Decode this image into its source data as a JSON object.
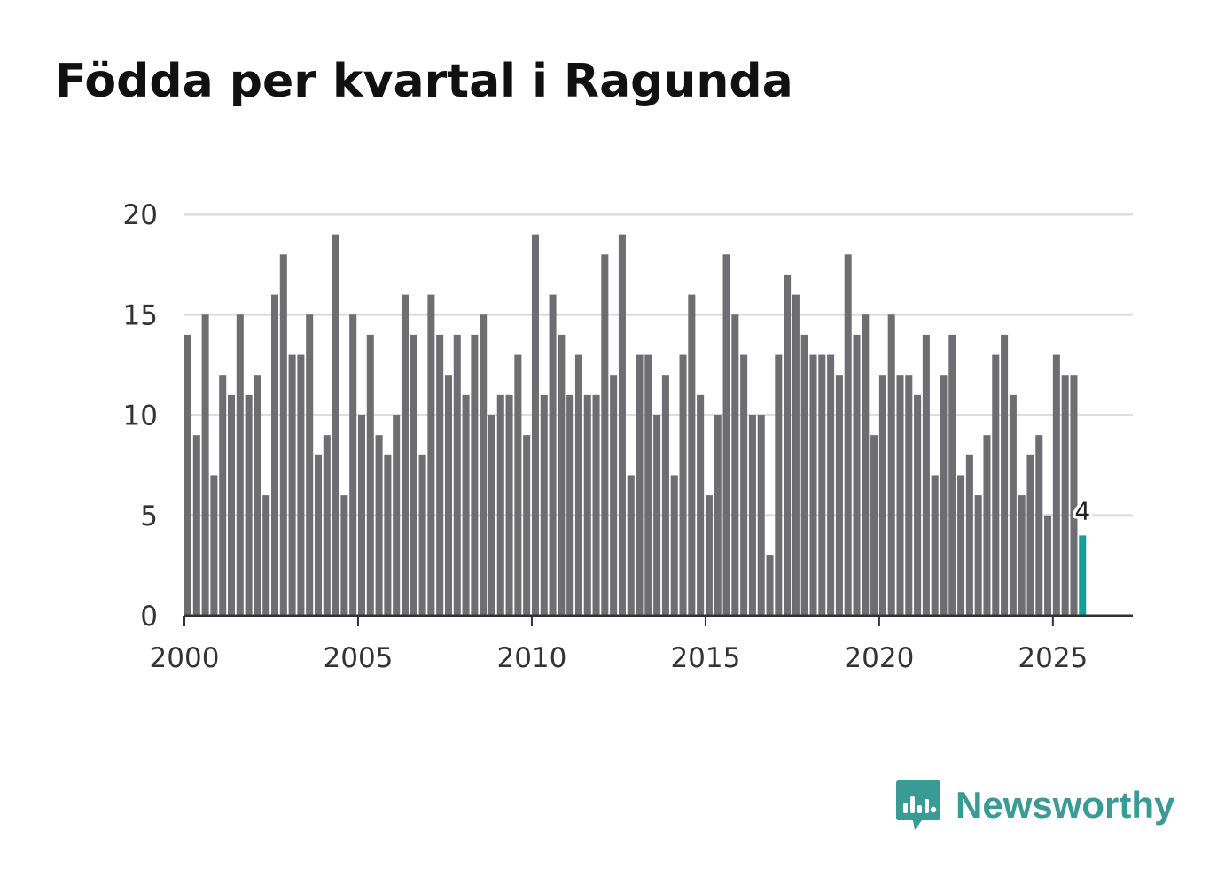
{
  "title": "Födda per kvartal i Ragunda",
  "brand": {
    "name": "Newsworthy",
    "color": "#3a9a94"
  },
  "colors": {
    "bar": "#6e6d72",
    "highlight": "#139e97",
    "grid": "#dddddd",
    "axis": "#333333"
  },
  "chart_data": {
    "type": "bar",
    "title": "Födda per kvartal i Ragunda",
    "xlabel": "",
    "ylabel": "",
    "ylim": [
      0,
      20
    ],
    "yticks": [
      0,
      5,
      10,
      15,
      20
    ],
    "xticks": [
      "2000",
      "2005",
      "2010",
      "2015",
      "2020",
      "2025"
    ],
    "x_start": 2000,
    "x_end": 2027.3,
    "start_year": 2000,
    "periods_per_year": 4,
    "values": [
      14,
      9,
      15,
      7,
      12,
      11,
      15,
      11,
      12,
      6,
      16,
      18,
      13,
      13,
      15,
      8,
      9,
      19,
      6,
      15,
      10,
      14,
      9,
      8,
      10,
      16,
      14,
      8,
      16,
      14,
      12,
      14,
      11,
      14,
      15,
      10,
      11,
      11,
      13,
      9,
      19,
      11,
      16,
      14,
      11,
      13,
      11,
      11,
      18,
      12,
      19,
      7,
      13,
      13,
      10,
      12,
      7,
      13,
      16,
      11,
      6,
      10,
      18,
      15,
      13,
      10,
      10,
      3,
      13,
      17,
      16,
      14,
      13,
      13,
      13,
      12,
      18,
      14,
      15,
      9,
      12,
      15,
      12,
      12,
      11,
      14,
      7,
      12,
      14,
      7,
      8,
      6,
      9,
      13,
      14,
      11,
      6,
      8,
      9,
      5,
      13,
      12,
      12,
      4
    ],
    "highlight_last": true,
    "last_label": "4"
  }
}
